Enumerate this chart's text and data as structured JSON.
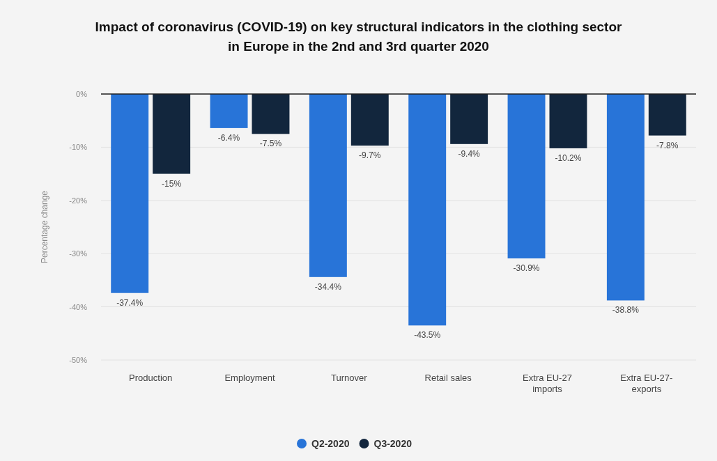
{
  "chart_data": {
    "type": "bar",
    "title": "Impact of coronavirus (COVID-19) on key structural indicators in the clothing sector in Europe in the 2nd and 3rd quarter 2020",
    "ylabel": "Percentage change",
    "categories": [
      "Production",
      "Employment",
      "Turnover",
      "Retail sales",
      "Extra EU-27 imports",
      "Extra EU-27- exports"
    ],
    "series": [
      {
        "name": "Q2-2020",
        "color": "#2874d8",
        "values": [
          -37.4,
          -6.4,
          -34.4,
          -43.5,
          -30.9,
          -38.8
        ],
        "value_labels": [
          "-37.4%",
          "-6.4%",
          "-34.4%",
          "-43.5%",
          "-30.9%",
          "-38.8%"
        ]
      },
      {
        "name": "Q3-2020",
        "color": "#12263d",
        "values": [
          -15,
          -7.5,
          -9.7,
          -9.4,
          -10.2,
          -7.8
        ],
        "value_labels": [
          "-15%",
          "-7.5%",
          "-9.7%",
          "-9.4%",
          "-10.2%",
          "-7.8%"
        ]
      }
    ],
    "ylim": [
      -50,
      0
    ],
    "yticks": [
      {
        "value": 0,
        "label": "0%"
      },
      {
        "value": -10,
        "label": "-10%"
      },
      {
        "value": -20,
        "label": "-20%"
      },
      {
        "value": -30,
        "label": "-30%"
      },
      {
        "value": -40,
        "label": "-40%"
      },
      {
        "value": -50,
        "label": "-50%"
      }
    ],
    "grid": "y",
    "legend": "bottom"
  }
}
